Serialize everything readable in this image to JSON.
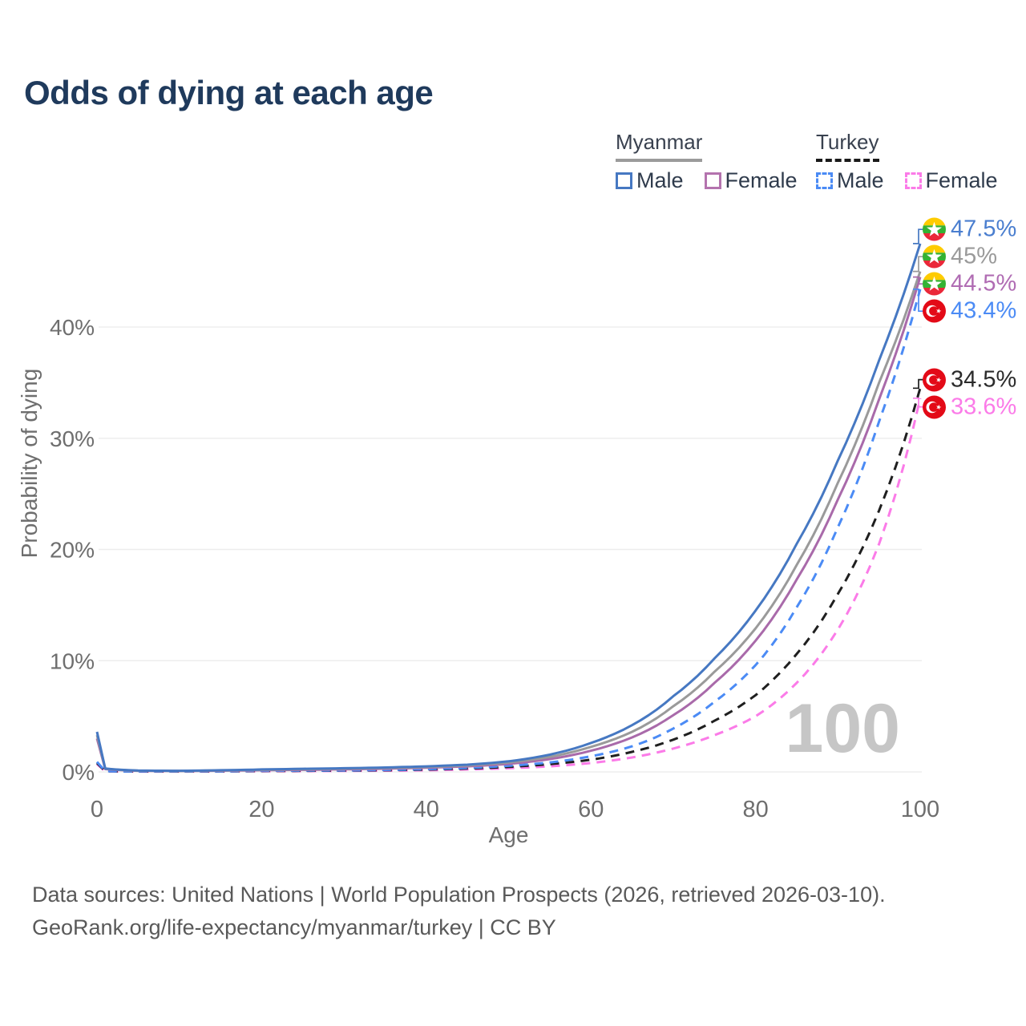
{
  "title": "Odds of dying at each age",
  "legend": {
    "groups": [
      {
        "name": "Myanmar",
        "line_style": "solid",
        "underline_color": "#9b9b9b",
        "items": [
          {
            "label": "Male",
            "color": "#4678c2",
            "dashed": false
          },
          {
            "label": "Female",
            "color": "#b473ae",
            "dashed": false
          }
        ]
      },
      {
        "name": "Turkey",
        "line_style": "dashed",
        "underline_color": "#1a1a1a",
        "items": [
          {
            "label": "Male",
            "color": "#4b8bf5",
            "dashed": true
          },
          {
            "label": "Female",
            "color": "#fb7be8",
            "dashed": true
          }
        ]
      }
    ]
  },
  "chart_data": {
    "type": "line",
    "title": "Odds of dying at each age",
    "xlabel": "Age",
    "ylabel": "Probability of dying",
    "xlim": [
      0,
      100
    ],
    "ylim": [
      0,
      48
    ],
    "unit": "%",
    "grid": "horizontal",
    "x_ticks": [
      {
        "value": 0,
        "label": "0"
      },
      {
        "value": 20,
        "label": "20"
      },
      {
        "value": 40,
        "label": "40"
      },
      {
        "value": 60,
        "label": "60"
      },
      {
        "value": 80,
        "label": "80"
      },
      {
        "value": 100,
        "label": "100"
      }
    ],
    "y_ticks": [
      {
        "value": 0,
        "label": "0%"
      },
      {
        "value": 10,
        "label": "10%"
      },
      {
        "value": 20,
        "label": "20%"
      },
      {
        "value": 30,
        "label": "30%"
      },
      {
        "value": 40,
        "label": "40%"
      }
    ],
    "ages": [
      0,
      1,
      5,
      10,
      15,
      20,
      25,
      30,
      35,
      40,
      45,
      50,
      55,
      60,
      65,
      70,
      75,
      80,
      85,
      90,
      95,
      100
    ],
    "series": [
      {
        "name": "Myanmar Male",
        "country": "Myanmar",
        "sex": "Male",
        "color": "#4678c2",
        "dashed": false,
        "values": [
          3.6,
          0.3,
          0.12,
          0.1,
          0.15,
          0.22,
          0.28,
          0.33,
          0.4,
          0.5,
          0.65,
          0.95,
          1.55,
          2.6,
          4.2,
          6.8,
          10.2,
          14.5,
          20.5,
          28,
          37,
          47.5
        ],
        "end_label": {
          "text": "47.5%",
          "value": 47.5,
          "color": "#4a7ecf",
          "flag": "myanmar"
        }
      },
      {
        "name": "Myanmar Both sexes",
        "country": "Myanmar",
        "sex": "Both",
        "color": "#9a9a9a",
        "dashed": false,
        "values": [
          3.3,
          0.28,
          0.11,
          0.09,
          0.13,
          0.19,
          0.24,
          0.29,
          0.35,
          0.44,
          0.58,
          0.85,
          1.35,
          2.25,
          3.6,
          5.9,
          9,
          12.9,
          18.6,
          26,
          35,
          45
        ],
        "end_label": {
          "text": "45%",
          "value": 45,
          "color": "#9a9a9a",
          "flag": "myanmar"
        }
      },
      {
        "name": "Myanmar Female",
        "country": "Myanmar",
        "sex": "Female",
        "color": "#a96aaa",
        "dashed": false,
        "values": [
          3.0,
          0.25,
          0.1,
          0.08,
          0.11,
          0.15,
          0.19,
          0.23,
          0.29,
          0.38,
          0.5,
          0.72,
          1.15,
          1.9,
          3.1,
          5.1,
          8,
          11.8,
          17.3,
          24.5,
          33.5,
          44.5
        ],
        "end_label": {
          "text": "44.5%",
          "value": 44.5,
          "color": "#b06cb3",
          "flag": "myanmar"
        }
      },
      {
        "name": "Turkey Male",
        "country": "Turkey",
        "sex": "Male",
        "color": "#4b8bf5",
        "dashed": true,
        "values": [
          0.9,
          0.07,
          0.04,
          0.04,
          0.06,
          0.1,
          0.12,
          0.14,
          0.18,
          0.25,
          0.36,
          0.55,
          0.85,
          1.4,
          2.3,
          3.9,
          6.3,
          9.6,
          14.8,
          22,
          31.5,
          43.4
        ],
        "end_label": {
          "text": "43.4%",
          "value": 43.4,
          "color": "#4b8bf5",
          "flag": "turkey"
        }
      },
      {
        "name": "Turkey Both sexes",
        "country": "Turkey",
        "sex": "Both",
        "color": "#1f1f1f",
        "dashed": true,
        "values": [
          0.8,
          0.06,
          0.035,
          0.035,
          0.05,
          0.08,
          0.1,
          0.12,
          0.15,
          0.21,
          0.3,
          0.45,
          0.7,
          1.1,
          1.8,
          2.9,
          4.6,
          6.9,
          10.6,
          16,
          23.5,
          34.5
        ],
        "end_label": {
          "text": "34.5%",
          "value": 34.5,
          "color": "#2b2b2b",
          "flag": "turkey"
        }
      },
      {
        "name": "Turkey Female",
        "country": "Turkey",
        "sex": "Female",
        "color": "#fb7be8",
        "dashed": true,
        "values": [
          0.7,
          0.05,
          0.03,
          0.03,
          0.04,
          0.06,
          0.07,
          0.09,
          0.11,
          0.15,
          0.22,
          0.33,
          0.5,
          0.8,
          1.3,
          2.1,
          3.3,
          5.0,
          8.0,
          12.8,
          20.5,
          33.6
        ],
        "end_label": {
          "text": "33.6%",
          "value": 33.6,
          "color": "#fb7be8",
          "flag": "turkey"
        }
      }
    ]
  },
  "flags": {
    "myanmar": {
      "yellow": "#FECB00",
      "green": "#34B233",
      "red": "#EA2839",
      "star": "#FFFFFF"
    },
    "turkey": {
      "red": "#E30A17",
      "star": "#FFFFFF"
    }
  },
  "watermark": "100",
  "colors": {
    "title": "#1f3a5c",
    "axis_text": "#6e6e6e",
    "grid": "#ededed",
    "watermark": "#c6c6c6",
    "footer_text": "#595959"
  },
  "footer": {
    "line1": "Data sources: United Nations | World Population Prospects (2026, retrieved 2026-03-10).",
    "line2": "GeoRank.org/life-expectancy/myanmar/turkey | CC BY"
  }
}
